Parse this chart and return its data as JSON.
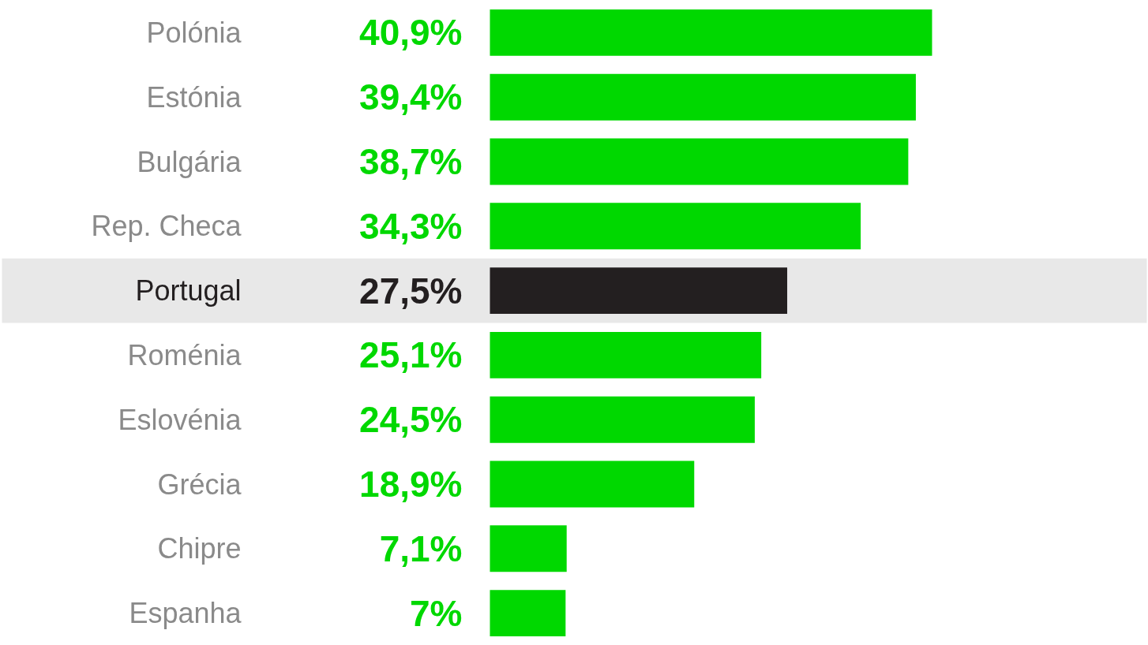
{
  "chart_data": {
    "type": "bar",
    "orientation": "horizontal",
    "categories": [
      "Polónia",
      "Estónia",
      "Bulgária",
      "Rep. Checa",
      "Portugal",
      "Roménia",
      "Eslovénia",
      "Grécia",
      "Chipre",
      "Espanha"
    ],
    "values": [
      40.9,
      39.4,
      38.7,
      34.3,
      27.5,
      25.1,
      24.5,
      18.9,
      7.1,
      7
    ],
    "value_labels": [
      "40,9%",
      "39,4%",
      "38,7%",
      "34,3%",
      "27,5%",
      "25,1%",
      "24,5%",
      "18,9%",
      "7,1%",
      "7%"
    ],
    "colors": [
      "#00d800",
      "#00d800",
      "#00d800",
      "#00d800",
      "#231f20",
      "#00d800",
      "#00d800",
      "#00d800",
      "#00d800",
      "#00d800"
    ],
    "bands": [
      {
        "axis": "y",
        "from": "Portugal",
        "to": "Portugal",
        "color": "#e8e8e8"
      }
    ]
  }
}
